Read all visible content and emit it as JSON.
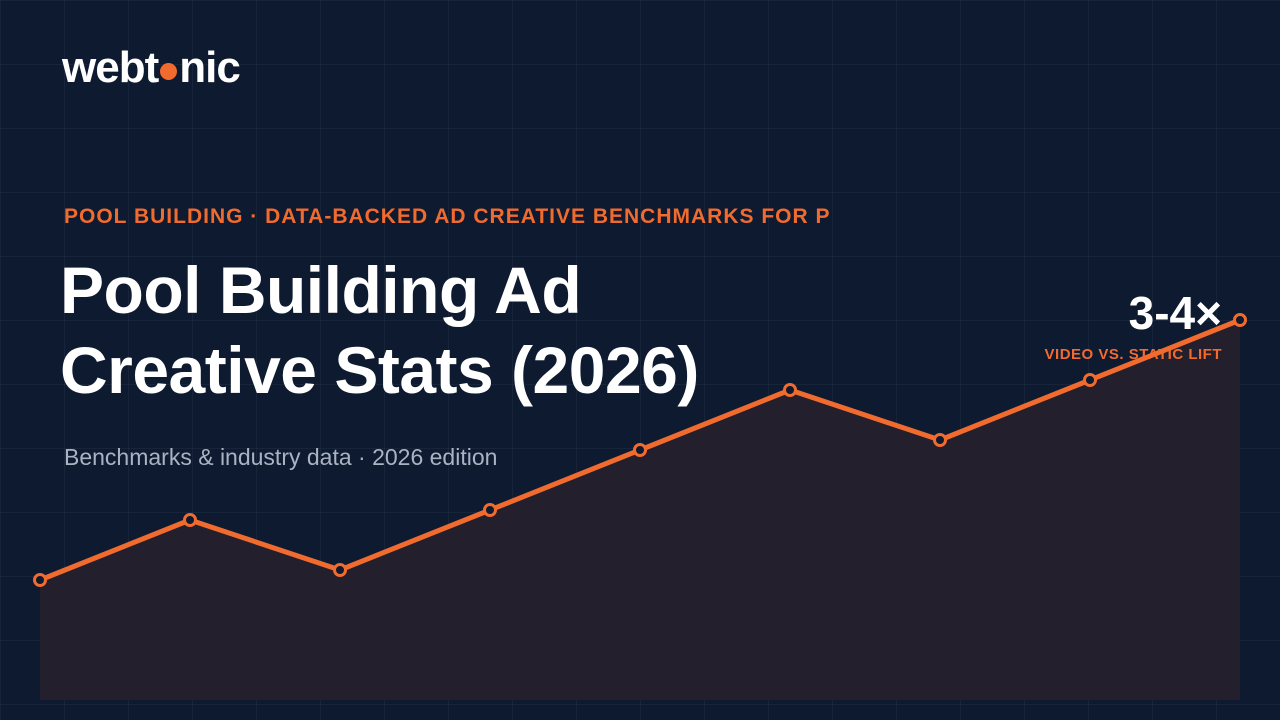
{
  "brand": {
    "logo_left": "webt",
    "logo_right": "nic"
  },
  "header": {
    "eyebrow": "POOL BUILDING · DATA-BACKED AD CREATIVE BENCHMARKS FOR P",
    "title_line1": "Pool Building Ad",
    "title_line2": "Creative Stats (2026)",
    "subtitle": "Benchmarks & industry data · 2026 edition"
  },
  "stat": {
    "value": "3-4×",
    "label": "VIDEO VS. STATIC LIFT"
  },
  "colors": {
    "accent": "#f26b2e",
    "background": "#0d1a30",
    "area_fill": "#241f2c"
  },
  "chart_data": {
    "type": "area",
    "x": [
      1,
      2,
      3,
      4,
      5,
      6,
      7,
      8,
      9
    ],
    "values": [
      0.24,
      0.36,
      0.26,
      0.38,
      0.5,
      0.62,
      0.52,
      0.64,
      0.76
    ],
    "ylim": [
      0,
      1
    ],
    "grid": true,
    "markers": true
  }
}
